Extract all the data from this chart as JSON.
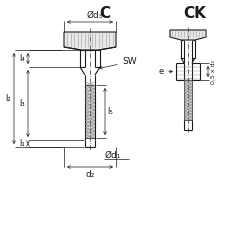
{
  "bg_color": "#ffffff",
  "line_color": "#1a1a1a",
  "title_C": "C",
  "title_CK": "CK",
  "label_d3": "Ød₃",
  "label_d1": "Ød₁",
  "label_d2": "d₂",
  "label_SW": "SW",
  "label_l2": "l₂",
  "label_l4": "l₄",
  "label_l3": "l₃",
  "label_l1": "l₁",
  "label_l5": "l₅",
  "label_e": "e",
  "label_05d2": "0,5 x d₂"
}
